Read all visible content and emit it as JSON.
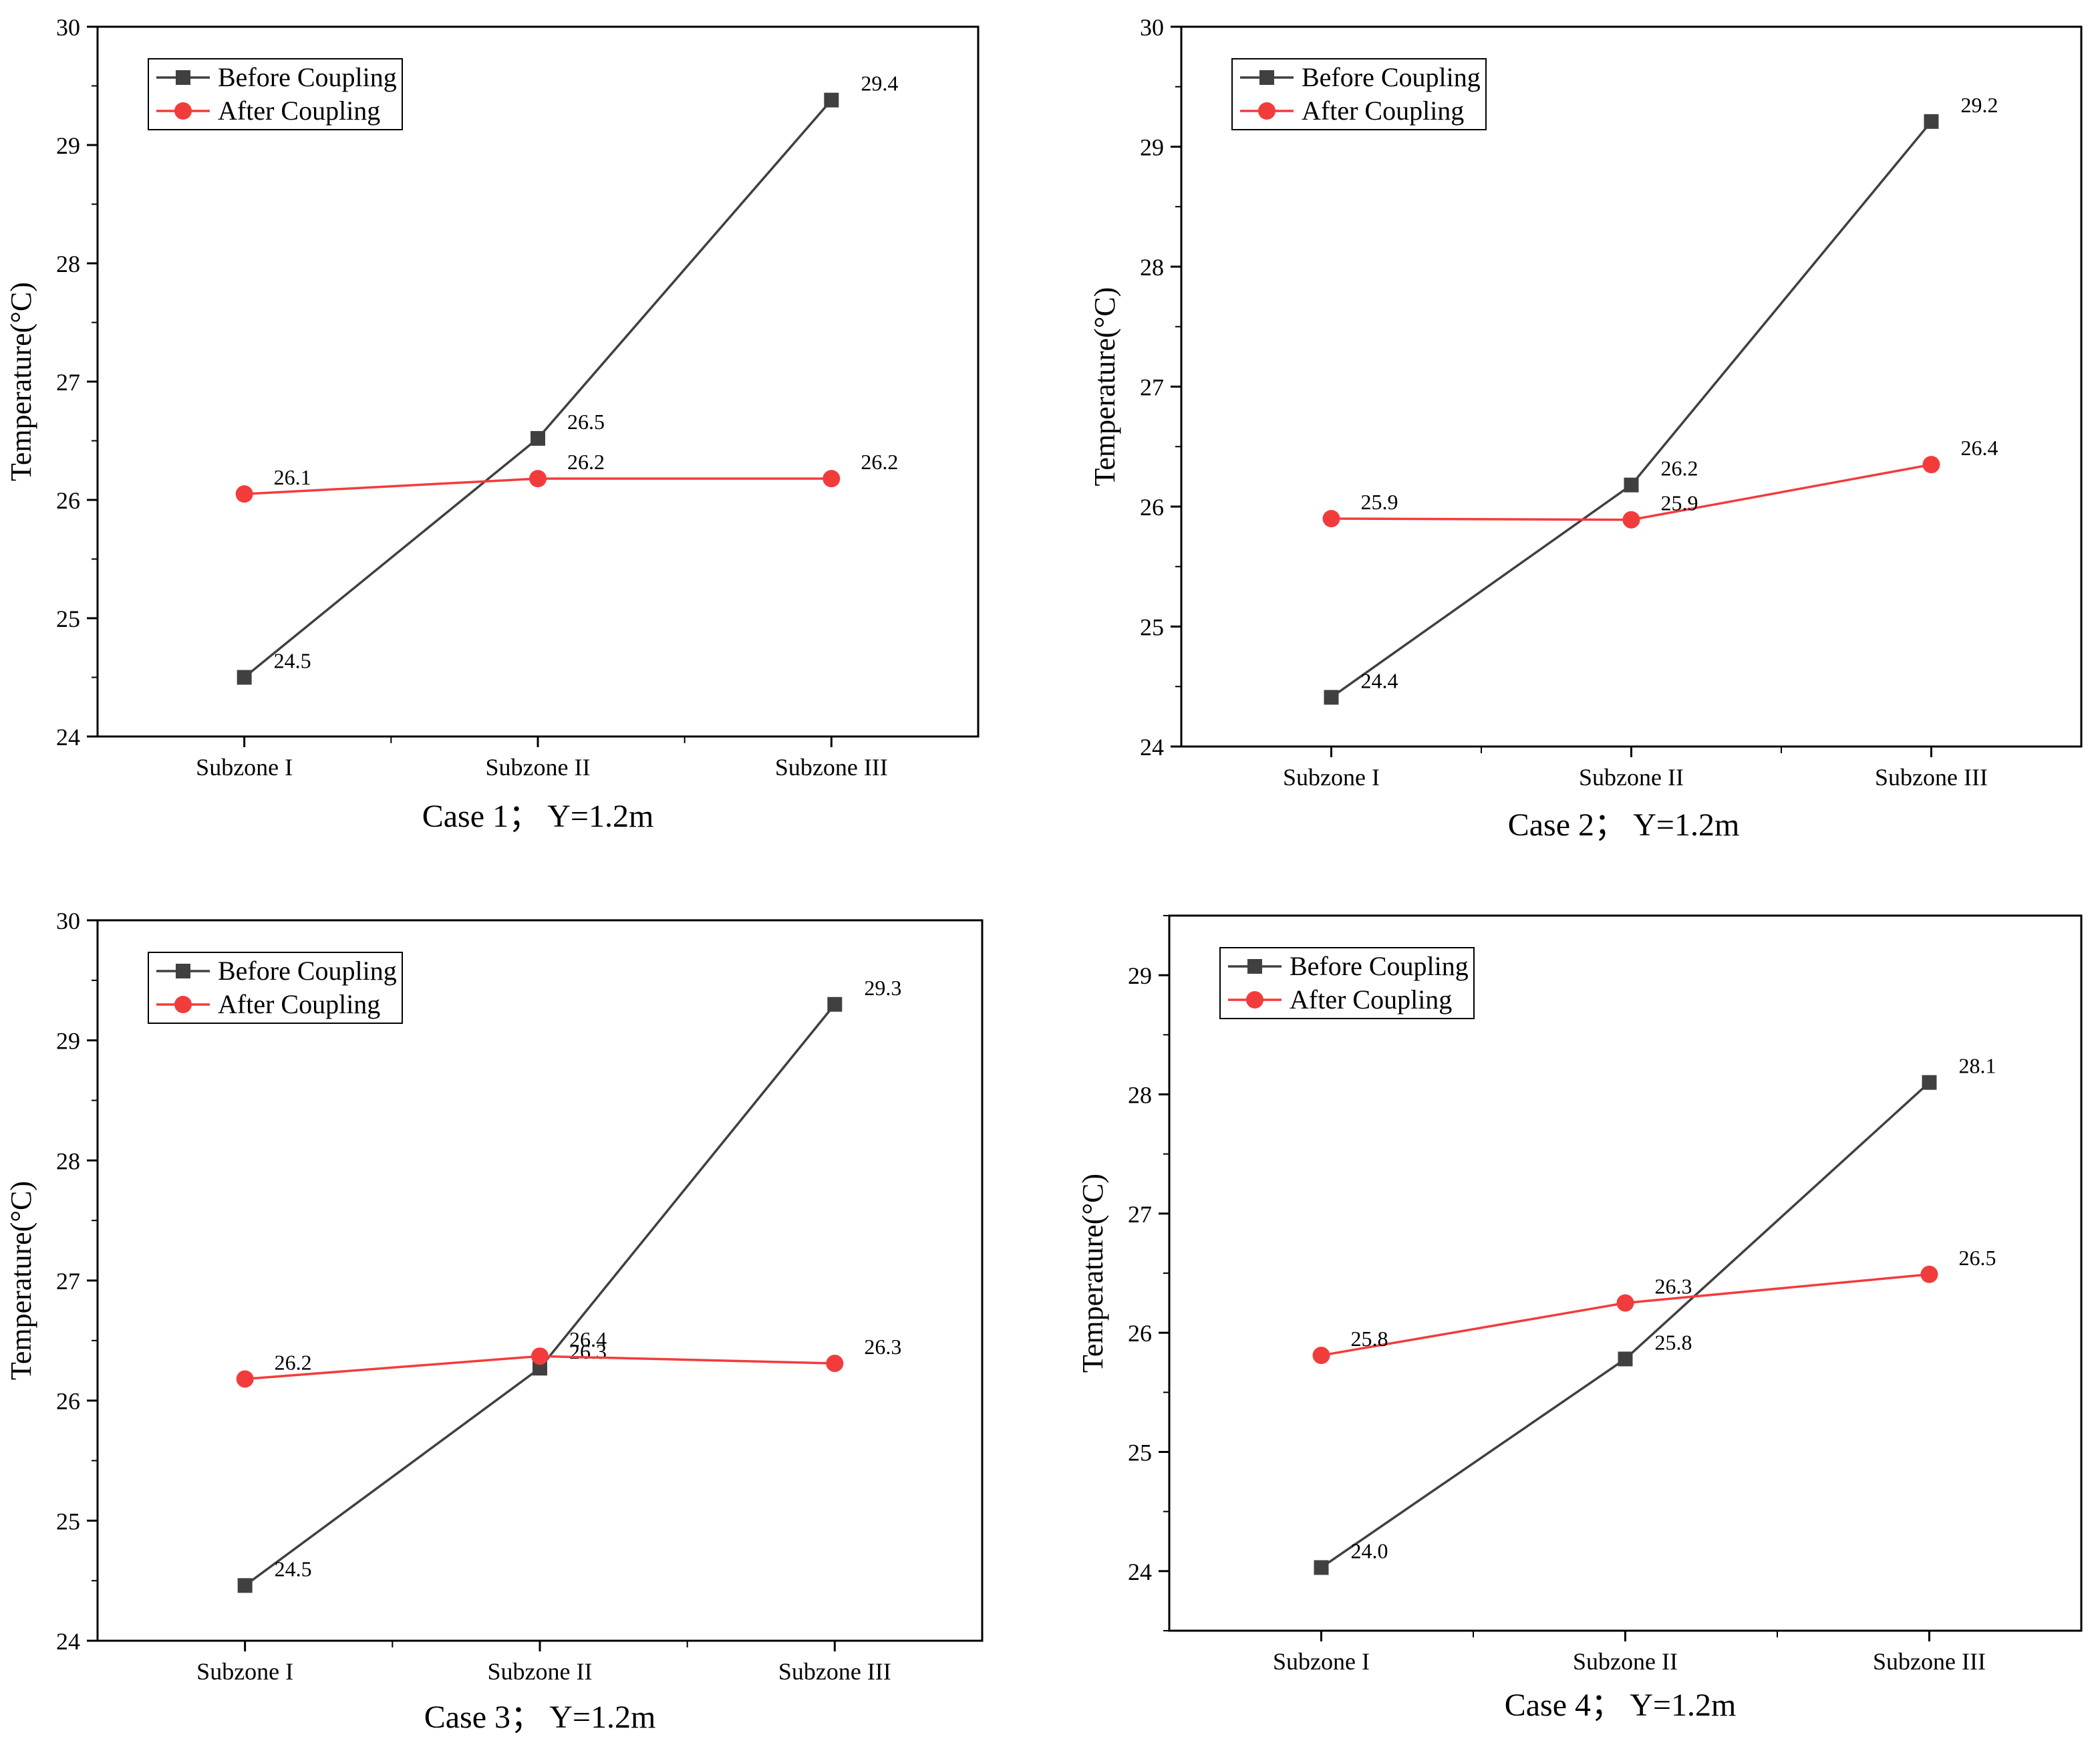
{
  "series_colors": {
    "before": "#404040",
    "after": "#f23c3c"
  },
  "chart_data": [
    {
      "type": "line",
      "caption": "Case 1； Y=1.2m",
      "ylabel": "Temperature(°C)",
      "categories": [
        "Subzone I",
        "Subzone II",
        "Subzone III"
      ],
      "ylim": [
        24,
        30
      ],
      "yticks": [
        24,
        25,
        26,
        27,
        28,
        29,
        30
      ],
      "legend_position": "top-left",
      "series": [
        {
          "name": "Before Coupling",
          "marker": "square",
          "values": [
            24.5,
            26.52,
            29.38
          ],
          "labels": [
            "24.5",
            "26.5",
            "29.4"
          ]
        },
        {
          "name": "After Coupling",
          "marker": "circle",
          "values": [
            26.05,
            26.18,
            26.18
          ],
          "labels": [
            "26.1",
            "26.2",
            "26.2"
          ]
        }
      ]
    },
    {
      "type": "line",
      "caption": "Case 2； Y=1.2m",
      "ylabel": "Temperature(°C)",
      "categories": [
        "Subzone I",
        "Subzone II",
        "Subzone III"
      ],
      "ylim": [
        24,
        30
      ],
      "yticks": [
        24,
        25,
        26,
        27,
        28,
        29,
        30
      ],
      "legend_position": "top-left",
      "series": [
        {
          "name": "Before Coupling",
          "marker": "square",
          "values": [
            24.41,
            26.18,
            29.21
          ],
          "labels": [
            "24.4",
            "26.2",
            "29.2"
          ]
        },
        {
          "name": "After Coupling",
          "marker": "circle",
          "values": [
            25.9,
            25.89,
            26.35
          ],
          "labels": [
            "25.9",
            "25.9",
            "26.4"
          ]
        }
      ]
    },
    {
      "type": "line",
      "caption": "Case 3； Y=1.2m",
      "ylabel": "Temperature(°C)",
      "categories": [
        "Subzone I",
        "Subzone II",
        "Subzone III"
      ],
      "ylim": [
        24,
        30
      ],
      "yticks": [
        24,
        25,
        26,
        27,
        28,
        29,
        30
      ],
      "legend_position": "top-left",
      "series": [
        {
          "name": "Before Coupling",
          "marker": "square",
          "values": [
            24.46,
            26.27,
            29.3
          ],
          "labels": [
            "24.5",
            "26.3",
            "29.3"
          ]
        },
        {
          "name": "After Coupling",
          "marker": "circle",
          "values": [
            26.18,
            26.37,
            26.31
          ],
          "labels": [
            "26.2",
            "26.4",
            "26.3"
          ]
        }
      ]
    },
    {
      "type": "line",
      "caption": "Case 4； Y=1.2m",
      "ylabel": "Temperature(°C)",
      "categories": [
        "Subzone I",
        "Subzone II",
        "Subzone III"
      ],
      "ylim": [
        23.5,
        29.5
      ],
      "yticks": [
        24,
        25,
        26,
        27,
        28,
        29
      ],
      "legend_position": "top-left",
      "series": [
        {
          "name": "Before Coupling",
          "marker": "square",
          "values": [
            24.03,
            25.78,
            28.1
          ],
          "labels": [
            "24.0",
            "25.8",
            "28.1"
          ]
        },
        {
          "name": "After Coupling",
          "marker": "circle",
          "values": [
            25.81,
            26.25,
            26.49
          ],
          "labels": [
            "25.8",
            "26.3",
            "26.5"
          ]
        }
      ]
    }
  ]
}
